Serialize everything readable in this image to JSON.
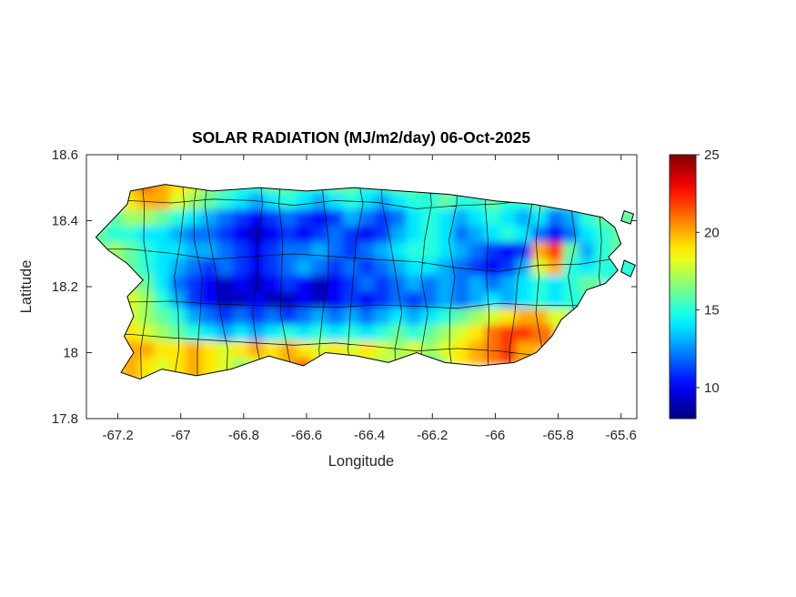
{
  "chart_data": {
    "type": "heatmap",
    "title": "SOLAR RADIATION (MJ/m2/day) 06-Oct-2025",
    "xlabel": "Longitude",
    "ylabel": "Latitude",
    "units": "MJ/m2/day",
    "region": "Puerto Rico with municipality boundaries overlay",
    "xlim": [
      -67.3,
      -65.55
    ],
    "ylim": [
      17.8,
      18.6
    ],
    "xticks": [
      -67.2,
      -67,
      -66.8,
      -66.6,
      -66.4,
      -66.2,
      -66,
      -65.8,
      -65.6
    ],
    "xtick_labels": [
      "-67.2",
      "-67",
      "-66.8",
      "-66.6",
      "-66.4",
      "-66.2",
      "-66",
      "-65.8",
      "-65.6"
    ],
    "yticks": [
      18.6,
      18.4,
      18.2,
      18,
      17.8
    ],
    "ytick_labels": [
      "18.6",
      "18.4",
      "18.2",
      "18",
      "17.8"
    ],
    "colormap": "jet",
    "clim": [
      8,
      25
    ],
    "colorbar_ticks": [
      25,
      20,
      15,
      10
    ],
    "colorbar_tick_labels": [
      "25",
      "20",
      "15",
      "10"
    ],
    "grid_on": false,
    "legend": "none",
    "grid": {
      "comment": "Solar radiation MJ/m2/day sampled on 0.05 deg grid; null = ocean/no data",
      "lon_start": -67.25,
      "lon_step": 0.05,
      "lat_start": 18.5,
      "lat_step": -0.05,
      "values": [
        [
          null,
          null,
          20,
          21,
          20,
          19,
          18,
          17,
          16,
          15,
          15,
          16,
          16,
          15,
          15,
          16,
          16,
          15,
          15,
          16,
          16,
          15,
          null,
          null,
          null,
          null,
          null,
          null,
          null,
          null,
          null,
          null,
          null,
          null,
          null
        ],
        [
          null,
          null,
          19,
          20,
          20,
          18,
          17,
          16,
          15,
          14,
          13,
          14,
          15,
          14,
          13,
          14,
          15,
          14,
          13,
          14,
          15,
          15,
          16,
          15,
          15,
          16,
          15,
          15,
          16,
          15,
          15,
          null,
          null,
          null,
          null
        ],
        [
          null,
          16,
          17,
          17,
          16,
          15,
          14,
          13,
          12,
          11,
          10,
          11,
          12,
          11,
          10,
          11,
          13,
          12,
          11,
          12,
          14,
          15,
          14,
          13,
          14,
          15,
          14,
          13,
          14,
          12,
          13,
          15,
          16,
          16,
          16
        ],
        [
          16,
          15,
          15,
          14,
          14,
          13,
          12,
          12,
          11,
          10,
          9,
          10,
          11,
          10,
          11,
          12,
          11,
          10,
          11,
          13,
          14,
          15,
          14,
          12,
          13,
          14,
          15,
          14,
          12,
          10,
          12,
          14,
          15,
          16,
          null
        ],
        [
          null,
          17,
          16,
          15,
          14,
          14,
          13,
          13,
          12,
          11,
          10,
          11,
          12,
          12,
          13,
          12,
          11,
          12,
          13,
          14,
          15,
          15,
          14,
          13,
          12,
          11,
          10,
          11,
          20,
          22,
          16,
          13,
          15,
          16,
          null
        ],
        [
          null,
          null,
          16,
          15,
          14,
          13,
          12,
          11,
          12,
          11,
          10,
          11,
          12,
          13,
          12,
          11,
          12,
          11,
          12,
          13,
          14,
          14,
          13,
          12,
          11,
          10,
          11,
          13,
          18,
          20,
          15,
          14,
          15,
          15,
          15
        ],
        [
          null,
          null,
          17,
          16,
          14,
          12,
          11,
          10,
          9,
          10,
          9,
          10,
          11,
          10,
          9,
          10,
          11,
          12,
          11,
          12,
          13,
          12,
          13,
          12,
          13,
          12,
          13,
          14,
          15,
          14,
          15,
          16,
          null,
          null,
          null
        ],
        [
          null,
          null,
          18,
          17,
          15,
          13,
          11,
          10,
          9,
          9,
          10,
          9,
          9,
          10,
          9,
          10,
          11,
          10,
          11,
          12,
          11,
          12,
          13,
          12,
          13,
          14,
          13,
          14,
          15,
          14,
          15,
          null,
          null,
          null,
          null
        ],
        [
          null,
          null,
          18,
          17,
          16,
          15,
          13,
          12,
          11,
          12,
          11,
          12,
          11,
          12,
          13,
          12,
          13,
          12,
          13,
          14,
          13,
          14,
          15,
          16,
          17,
          18,
          19,
          20,
          20,
          18,
          null,
          null,
          null,
          null,
          null
        ],
        [
          null,
          18,
          19,
          18,
          17,
          16,
          15,
          14,
          13,
          14,
          13,
          14,
          15,
          14,
          15,
          14,
          15,
          14,
          15,
          16,
          15,
          16,
          17,
          18,
          19,
          21,
          22,
          22,
          21,
          null,
          null,
          null,
          null,
          null,
          null
        ],
        [
          null,
          19,
          20,
          20,
          19,
          19,
          20,
          19,
          18,
          19,
          20,
          19,
          20,
          19,
          18,
          19,
          18,
          19,
          18,
          17,
          18,
          17,
          18,
          19,
          20,
          21,
          22,
          20,
          null,
          null,
          null,
          null,
          null,
          null,
          null
        ],
        [
          null,
          19,
          20,
          19,
          18,
          19,
          20,
          19,
          18,
          17,
          18,
          19,
          20,
          21,
          19,
          18,
          19,
          18,
          17,
          18,
          17,
          16,
          null,
          null,
          null,
          null,
          null,
          null,
          null,
          null,
          null,
          null,
          null,
          null,
          null
        ]
      ]
    }
  }
}
